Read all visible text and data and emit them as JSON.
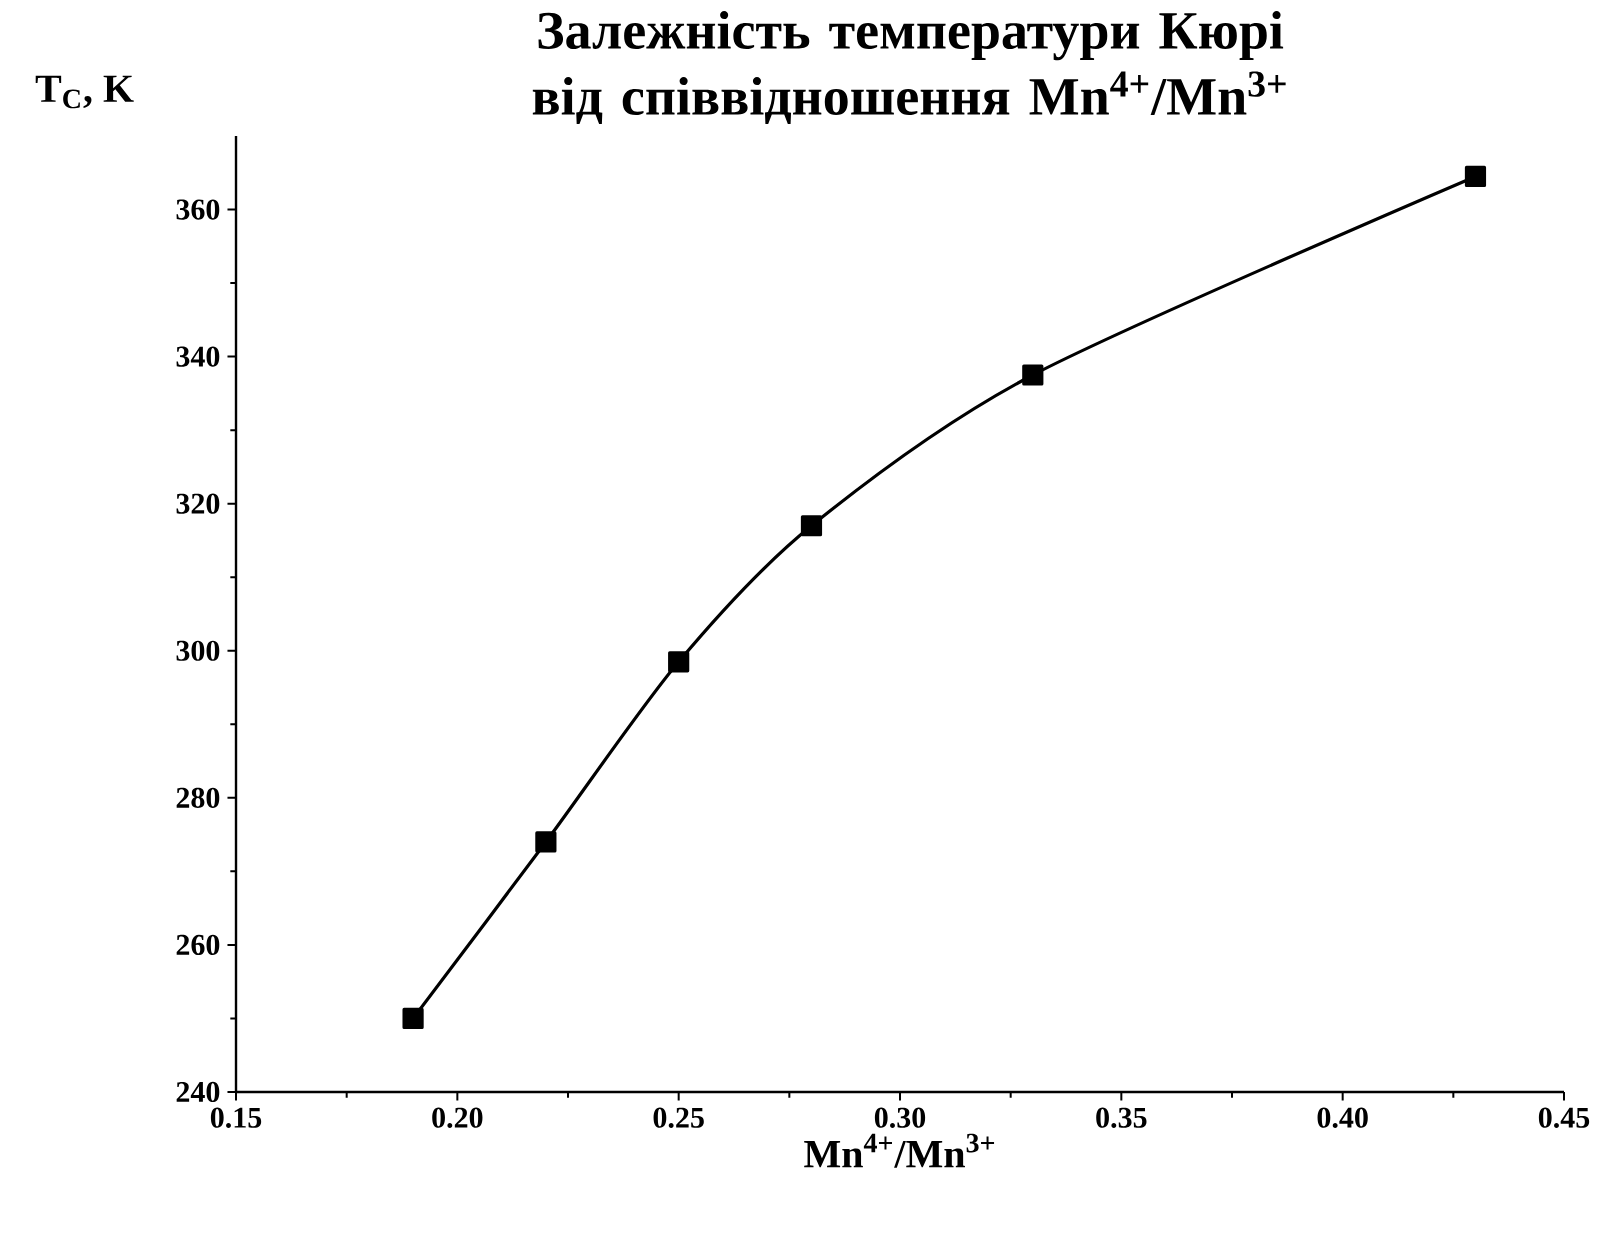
{
  "chart_data": {
    "type": "line",
    "title": "Залежність температури Кюрі від співвідношення  Mn$^{4+}$/Mn$^{3+}$",
    "xlabel": "Mn$^{4+}$/Mn$^{3+}$",
    "ylabel": "T$_{C}$, K",
    "x": [
      0.19,
      0.22,
      0.25,
      0.28,
      0.33,
      0.43
    ],
    "series": [
      {
        "color": "#000000",
        "values": [
          250,
          274,
          298.5,
          317,
          337.5,
          364.5
        ]
      }
    ],
    "marker": "square",
    "line_style": "solid",
    "xlim": [
      0.15,
      0.45
    ],
    "ylim": [
      240,
      370
    ],
    "xticks": [
      {
        "value": 0.15,
        "label": "0.15"
      },
      {
        "value": 0.2,
        "label": "0.20"
      },
      {
        "value": 0.25,
        "label": "0.25"
      },
      {
        "value": 0.3,
        "label": "0.30"
      },
      {
        "value": 0.35,
        "label": "0.35"
      },
      {
        "value": 0.4,
        "label": "0.40"
      },
      {
        "value": 0.45,
        "label": "0.45"
      }
    ],
    "yticks": [
      240,
      260,
      280,
      300,
      320,
      340,
      360
    ]
  }
}
